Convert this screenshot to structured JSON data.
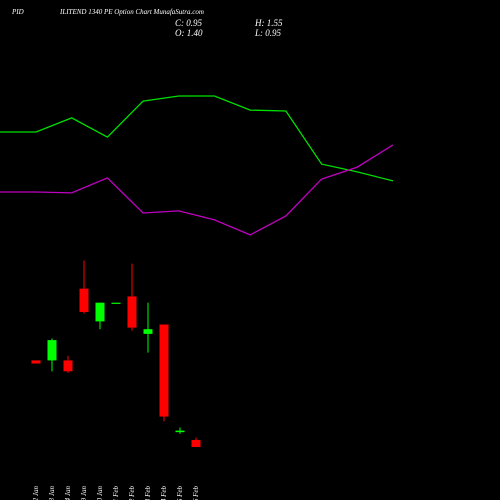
{
  "chart_data": {
    "type": "candlestick",
    "title": "PID",
    "subtitle": "ILITEND 1340 PE Option Chart MunafaSutra.com",
    "ohlc_text": [
      "C: 0.95",
      "O: 1.40",
      "H: 1.55",
      "L: 0.95"
    ],
    "categories": [
      "22 Jan",
      "23 Jan",
      "24 Jan",
      "29 Jan",
      "30 Jan",
      "01 Feb",
      "02 Feb",
      "03 Feb",
      "04 Feb",
      "05 Feb",
      "06 Feb"
    ],
    "open": [
      6.5,
      6.5,
      6.5,
      11.1,
      9.0,
      10.2,
      10.6,
      8.2,
      8.8,
      1.9,
      1.4
    ],
    "high": [
      6.5,
      7.9,
      6.8,
      12.9,
      10.2,
      10.2,
      12.7,
      10.2,
      8.8,
      2.2,
      1.55
    ],
    "low": [
      6.3,
      5.8,
      5.7,
      9.5,
      8.5,
      10.2,
      8.4,
      7.0,
      2.6,
      1.8,
      0.95
    ],
    "close": [
      6.3,
      7.8,
      5.8,
      9.6,
      10.2,
      10.2,
      8.6,
      8.5,
      2.9,
      2.0,
      0.95
    ],
    "up_color": "#00ff00",
    "down_color": "#ff0000",
    "ylim": [
      0,
      14
    ],
    "y2lim": [
      0,
      100
    ],
    "series": [
      {
        "name": "line-1",
        "color": "#00e000",
        "axis": "y2",
        "values": [
          56,
          60.7,
          54.3,
          66.3,
          68,
          68,
          63.3,
          63,
          45.3,
          42.7,
          39.7
        ]
      },
      {
        "name": "line-2",
        "color": "#c000c0",
        "axis": "y2",
        "values": [
          36,
          35.7,
          40.7,
          29,
          29.7,
          26.7,
          21.7,
          28,
          40.3,
          44.3,
          51.7
        ]
      }
    ]
  }
}
